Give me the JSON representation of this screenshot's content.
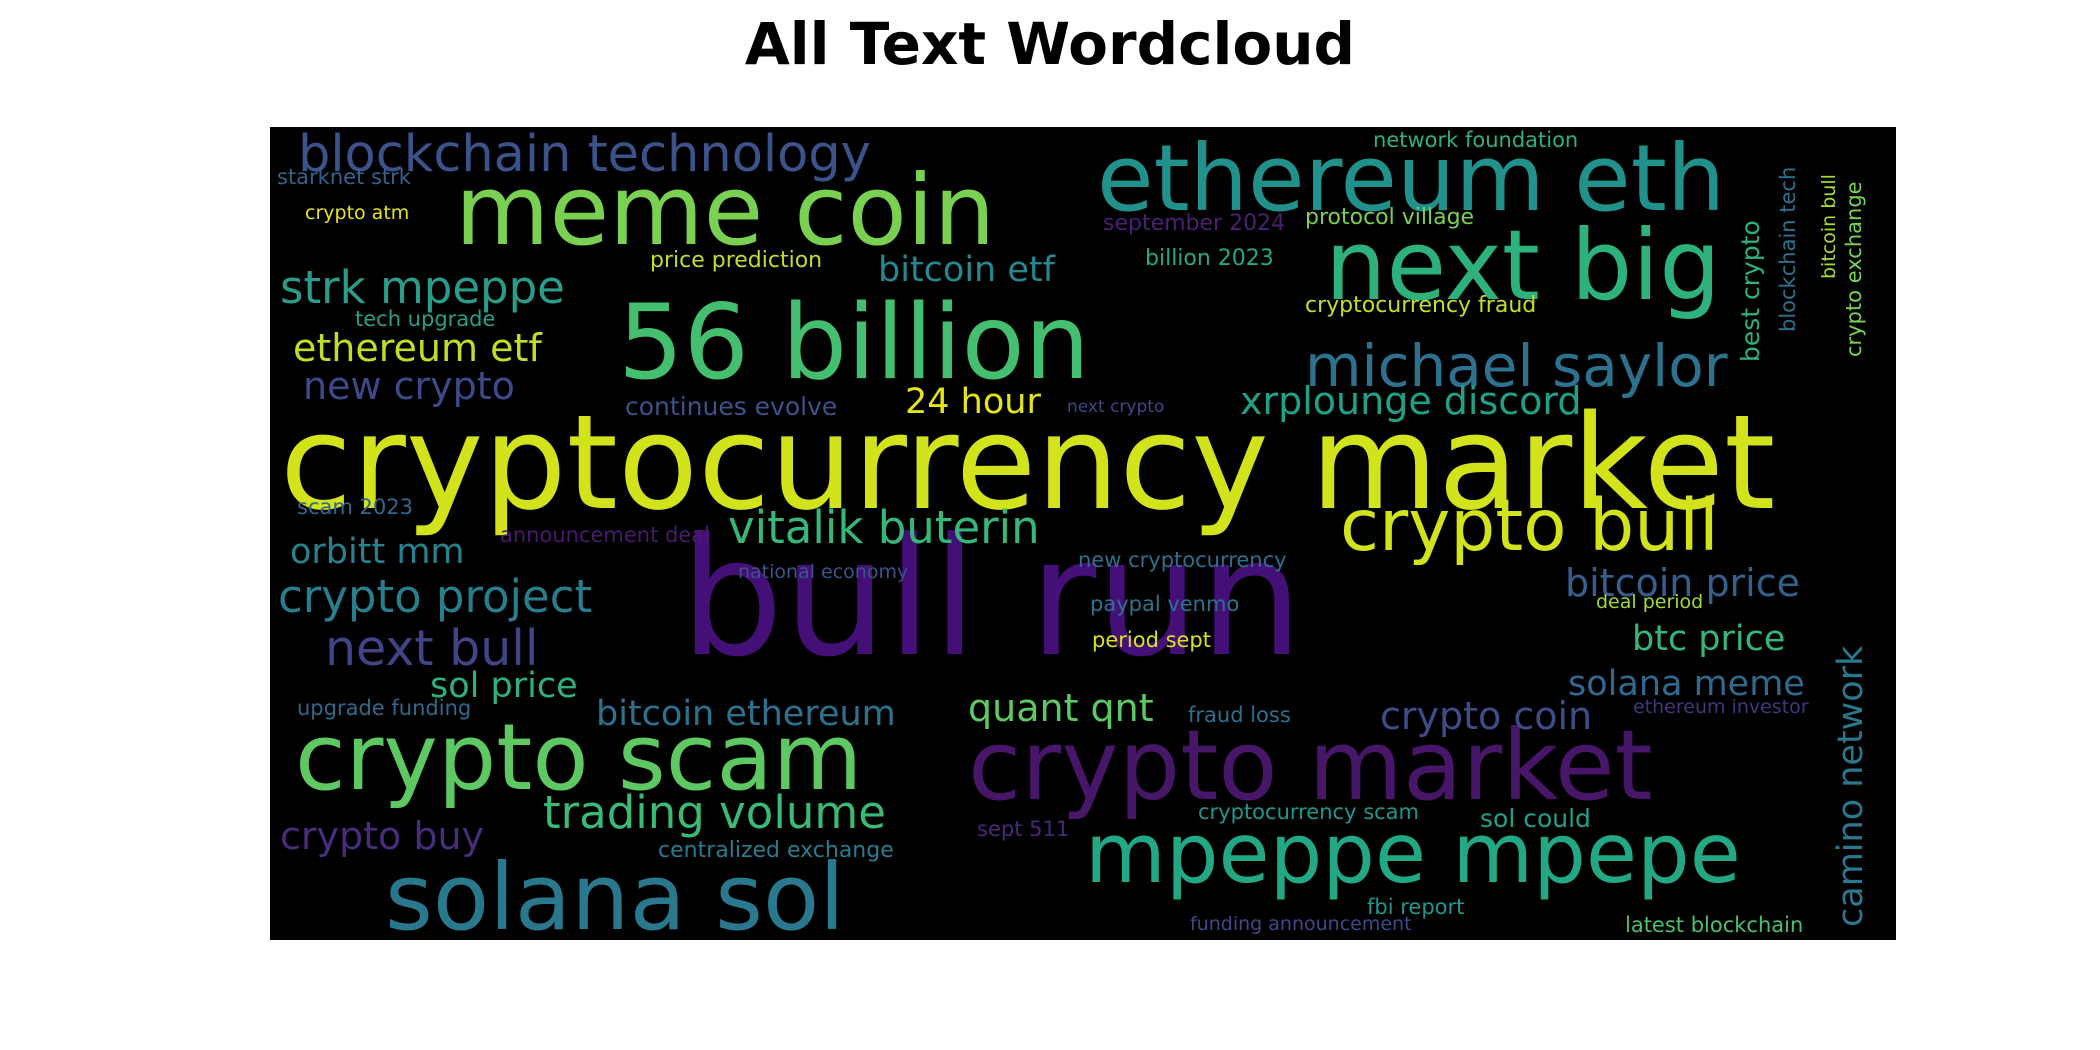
{
  "title": "All Text Wordcloud",
  "words": [
    {
      "text": "cryptocurrency market",
      "color": "#d2e21b"
    },
    {
      "text": "bull run",
      "color": "#440f76"
    },
    {
      "text": "56 billion",
      "color": "#44bf70"
    },
    {
      "text": "meme coin",
      "color": "#7ad151"
    },
    {
      "text": "ethereum eth",
      "color": "#21918c"
    },
    {
      "text": "next big",
      "color": "#2db27d"
    },
    {
      "text": "crypto market",
      "color": "#481668"
    },
    {
      "text": "crypto scam",
      "color": "#5ec962"
    },
    {
      "text": "mpeppe mpepe",
      "color": "#22a884"
    },
    {
      "text": "solana sol",
      "color": "#2a788e"
    },
    {
      "text": "michael saylor",
      "color": "#2c728e"
    },
    {
      "text": "crypto bull",
      "color": "#d2e21b"
    },
    {
      "text": "blockchain technology",
      "color": "#3b528b"
    },
    {
      "text": "vitalik buterin",
      "color": "#35b779"
    },
    {
      "text": "strk mpeppe",
      "color": "#2a9d8a"
    },
    {
      "text": "crypto project",
      "color": "#277f8e"
    },
    {
      "text": "xrplounge discord",
      "color": "#1fa187"
    },
    {
      "text": "next bull",
      "color": "#414487"
    },
    {
      "text": "bitcoin price",
      "color": "#355f8d"
    },
    {
      "text": "trading volume",
      "color": "#3aba76"
    },
    {
      "text": "ethereum etf",
      "color": "#bddf26"
    },
    {
      "text": "new crypto",
      "color": "#3e4989"
    },
    {
      "text": "24 hour",
      "color": "#e5e419"
    },
    {
      "text": "bitcoin etf",
      "color": "#23898e"
    },
    {
      "text": "orbitt mm",
      "color": "#26828e"
    },
    {
      "text": "btc price",
      "color": "#35b779"
    },
    {
      "text": "solana meme",
      "color": "#31688e"
    },
    {
      "text": "crypto coin",
      "color": "#3e4c8a"
    },
    {
      "text": "camino network",
      "color": "#2a788e"
    },
    {
      "text": "sol price",
      "color": "#2db27d"
    },
    {
      "text": "bitcoin ethereum",
      "color": "#2c728e"
    },
    {
      "text": "quant qnt",
      "color": "#5ec962"
    },
    {
      "text": "crypto buy",
      "color": "#472d7b"
    },
    {
      "text": "centralized exchange",
      "color": "#287c8e"
    },
    {
      "text": "sol could",
      "color": "#1fa187"
    },
    {
      "text": "cryptocurrency scam",
      "color": "#1f988b"
    },
    {
      "text": "continues evolve",
      "color": "#3b528b"
    },
    {
      "text": "network foundation",
      "color": "#2db27d"
    },
    {
      "text": "starknet strk",
      "color": "#33638d"
    },
    {
      "text": "crypto atm",
      "color": "#e5e419"
    },
    {
      "text": "september 2024",
      "color": "#482173"
    },
    {
      "text": "protocol village",
      "color": "#7ad151"
    },
    {
      "text": "price prediction",
      "color": "#bddf26"
    },
    {
      "text": "billion 2023",
      "color": "#22a884"
    },
    {
      "text": "cryptocurrency fraud",
      "color": "#c2df23"
    },
    {
      "text": "tech upgrade",
      "color": "#2a9d8a"
    },
    {
      "text": "next crypto",
      "color": "#3f4788"
    },
    {
      "text": "scam 2023",
      "color": "#31688e"
    },
    {
      "text": "announcement deal",
      "color": "#481a6c"
    },
    {
      "text": "national economy",
      "color": "#3a548c"
    },
    {
      "text": "new cryptocurrency",
      "color": "#2d708e"
    },
    {
      "text": "paypal venmo",
      "color": "#2c728e"
    },
    {
      "text": "period sept",
      "color": "#d8e219"
    },
    {
      "text": "deal period",
      "color": "#a0da39"
    },
    {
      "text": "fraud loss",
      "color": "#2d708e"
    },
    {
      "text": "ethereum investor",
      "color": "#46337e"
    },
    {
      "text": "upgrade funding",
      "color": "#31688e"
    },
    {
      "text": "sept 511",
      "color": "#482878"
    },
    {
      "text": "fbi report",
      "color": "#1f988b"
    },
    {
      "text": "funding announcement",
      "color": "#3e4989"
    },
    {
      "text": "latest blockchain",
      "color": "#4ac16d"
    },
    {
      "text": "best crypto",
      "color": "#2db27d"
    },
    {
      "text": "blockchain tech",
      "color": "#2c728e"
    },
    {
      "text": "bitcoin bull",
      "color": "#a5db36"
    },
    {
      "text": "crypto exchange",
      "color": "#7ad151"
    }
  ]
}
